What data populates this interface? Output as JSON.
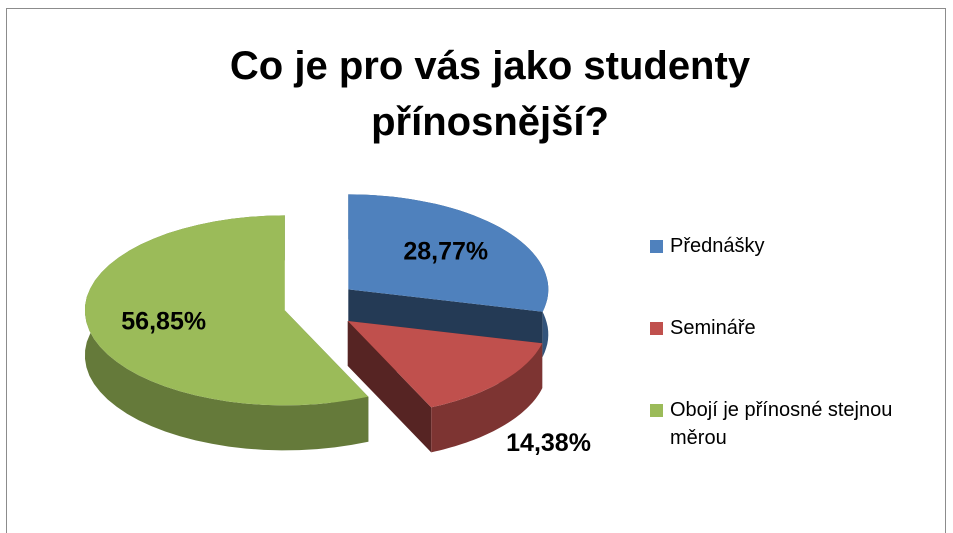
{
  "chart_data": {
    "type": "pie",
    "title": "Co je pro vás jako studenty přínosnější?",
    "categories": [
      "Přednášky",
      "Semináře",
      "Obojí je přínosné stejnou měrou"
    ],
    "values": [
      28.77,
      14.38,
      56.85
    ],
    "value_labels": [
      "28,77%",
      "14,38%",
      "56,85%"
    ],
    "colors": [
      "#4f81bd",
      "#c0504d",
      "#9bbb59"
    ],
    "legend": "right"
  }
}
